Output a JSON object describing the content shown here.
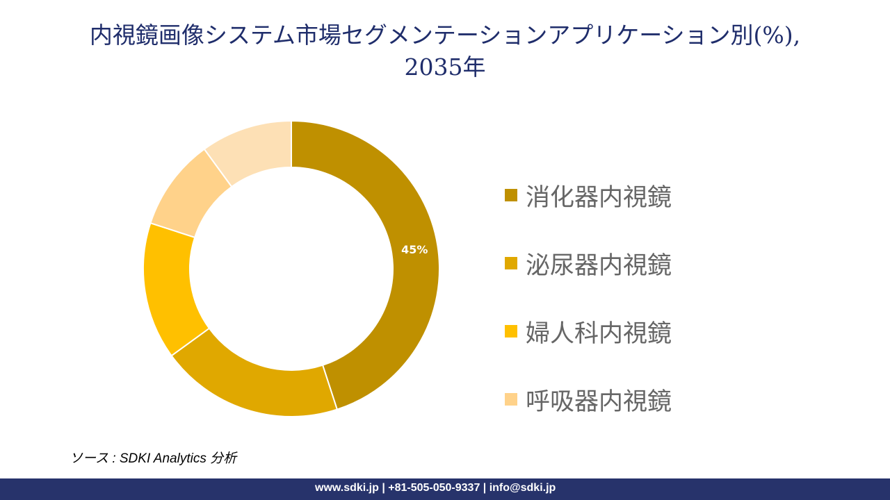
{
  "title_line1": "内視鏡画像システム市場セグメンテーションアプリケーション別(%),",
  "title_line2": "2035年",
  "chart_data": {
    "type": "pie",
    "variant": "donut",
    "title": "内視鏡画像システム市場セグメンテーションアプリケーション別(%), 2035年",
    "categories": [
      "消化器内視鏡",
      "泌尿器内視鏡",
      "婦人科内視鏡",
      "呼吸器内視鏡",
      ""
    ],
    "values": [
      45,
      20,
      15,
      10,
      10
    ],
    "colors": [
      "#BF9000",
      "#E0A800",
      "#FFC000",
      "#FFD28A",
      "#FDE0B5"
    ],
    "data_labels": [
      "45%",
      "",
      "",
      "",
      ""
    ],
    "legend_position": "right",
    "start_angle": "top, clockwise"
  },
  "source": "ソース : SDKI Analytics  分析",
  "footer": "www.sdki.jp | +81-505-050-9337 | info@sdki.jp"
}
